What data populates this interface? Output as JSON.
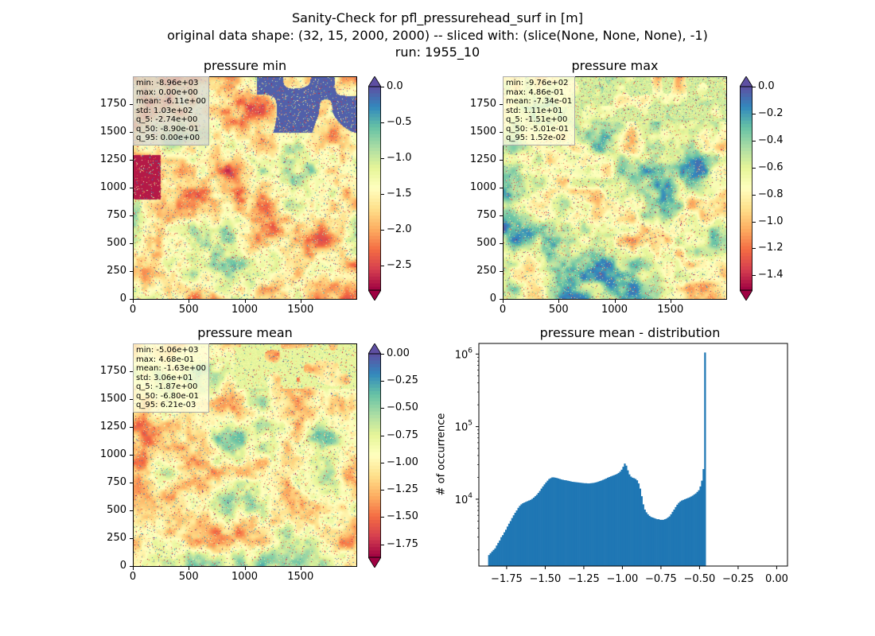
{
  "suptitle": {
    "line1": "Sanity-Check for pfl_pressurehead_surf in [m]",
    "line2": "original data shape: (32, 15, 2000, 2000) -- sliced with: (slice(None, None, None), -1)",
    "line3": "run: 1955_10"
  },
  "colors": {
    "histogram_bar": "#1f77b4",
    "spectral_low": "#9e0142",
    "spectral_mid": "#ffffbf",
    "spectral_high": "#5e4fa2"
  },
  "chart_data": [
    {
      "type": "heatmap",
      "title": "pressure min",
      "colormap": "Spectral",
      "xticks": [
        "0",
        "500",
        "1000",
        "1500"
      ],
      "yticks": [
        "0",
        "250",
        "500",
        "750",
        "1000",
        "1250",
        "1500",
        "1750"
      ],
      "xlim": [
        0,
        2000
      ],
      "ylim": [
        0,
        2000
      ],
      "colorbar": {
        "range": [
          -2.85,
          0.0
        ],
        "ticks": [
          "0.0",
          "−0.5",
          "−1.0",
          "−1.5",
          "−2.0",
          "−2.5"
        ],
        "tick_values": [
          0.0,
          -0.5,
          -1.0,
          -1.5,
          -2.0,
          -2.5
        ],
        "extend": "both"
      },
      "stats": [
        "min: -8.96e+03",
        "max: 0.00e+00",
        "mean: -6.11e+00",
        "std: 1.03e+02",
        "q_5: -2.74e+00",
        "q_50: -8.90e-01",
        "q_95: 0.00e+00"
      ]
    },
    {
      "type": "heatmap",
      "title": "pressure max",
      "colormap": "Spectral",
      "xticks": [
        "0",
        "500",
        "1000",
        "1500"
      ],
      "yticks": [
        "0",
        "250",
        "500",
        "750",
        "1000",
        "1250",
        "1500",
        "1750"
      ],
      "xlim": [
        0,
        2000
      ],
      "ylim": [
        0,
        2000
      ],
      "colorbar": {
        "range": [
          -1.51,
          0.0
        ],
        "ticks": [
          "0.0",
          "−0.2",
          "−0.4",
          "−0.6",
          "−0.8",
          "−1.0",
          "−1.2",
          "−1.4"
        ],
        "tick_values": [
          0.0,
          -0.2,
          -0.4,
          -0.6,
          -0.8,
          -1.0,
          -1.2,
          -1.4
        ],
        "extend": "both"
      },
      "stats": [
        "min: -9.76e+02",
        "max: 4.86e-01",
        "mean: -7.34e-01",
        "std: 1.11e+01",
        "q_5: -1.51e+00",
        "q_50: -5.01e-01",
        "q_95: 1.52e-02"
      ]
    },
    {
      "type": "heatmap",
      "title": "pressure mean",
      "colormap": "Spectral",
      "xticks": [
        "0",
        "500",
        "1000",
        "1500"
      ],
      "yticks": [
        "0",
        "250",
        "500",
        "750",
        "1000",
        "1250",
        "1500",
        "1750"
      ],
      "xlim": [
        0,
        2000
      ],
      "ylim": [
        0,
        2000
      ],
      "colorbar": {
        "range": [
          -1.87,
          0.0
        ],
        "ticks": [
          "0.00",
          "−0.25",
          "−0.50",
          "−0.75",
          "−1.00",
          "−1.25",
          "−1.50",
          "−1.75"
        ],
        "tick_values": [
          0.0,
          -0.25,
          -0.5,
          -0.75,
          -1.0,
          -1.25,
          -1.5,
          -1.75
        ],
        "extend": "both"
      },
      "stats": [
        "min: -5.06e+03",
        "max: 4.68e-01",
        "mean: -1.63e+00",
        "std: 3.06e+01",
        "q_5: -1.87e+00",
        "q_50: -6.80e-01",
        "q_95: 6.21e-03"
      ]
    },
    {
      "type": "bar",
      "title": "pressure mean - distribution",
      "ylabel": "# of occurrence",
      "yscale": "log",
      "xlim": [
        -1.93,
        0.07
      ],
      "ylim": [
        1200,
        1400000
      ],
      "xticks": [
        "−1.75",
        "−1.50",
        "−1.25",
        "−1.00",
        "−0.75",
        "−0.50",
        "−0.25",
        "0.00"
      ],
      "xtick_values": [
        -1.75,
        -1.5,
        -1.25,
        -1.0,
        -0.75,
        -0.5,
        -0.25,
        0.0
      ],
      "yticks": [
        {
          "base": "10",
          "exp": "4",
          "value": 10000
        },
        {
          "base": "10",
          "exp": "5",
          "value": 100000
        },
        {
          "base": "10",
          "exp": "6",
          "value": 1000000
        }
      ],
      "bin_start": -1.87,
      "bin_width": 0.01,
      "counts": [
        1700,
        1800,
        1900,
        2000,
        2100,
        2300,
        2500,
        2700,
        3000,
        3200,
        3500,
        3800,
        4200,
        4600,
        5000,
        5500,
        6000,
        6500,
        7000,
        7600,
        8100,
        8500,
        8800,
        9000,
        9200,
        9400,
        9600,
        9800,
        10100,
        10500,
        11000,
        11500,
        12200,
        13000,
        14000,
        15000,
        16000,
        17000,
        18000,
        19000,
        19500,
        20000,
        20000,
        19800,
        19600,
        19300,
        19000,
        18700,
        18500,
        18300,
        18200,
        18000,
        17800,
        17600,
        17400,
        17300,
        17200,
        17100,
        17000,
        16900,
        16800,
        16700,
        16600,
        16600,
        16500,
        16500,
        16600,
        16700,
        16800,
        17000,
        17200,
        17500,
        17800,
        18100,
        18500,
        18900,
        19300,
        19800,
        20200,
        20600,
        21000,
        21400,
        21800,
        22300,
        23000,
        24000,
        25500,
        28000,
        31000,
        29000,
        25000,
        22000,
        20500,
        19800,
        19500,
        19000,
        18200,
        16500,
        14000,
        11000,
        8500,
        7200,
        6600,
        6200,
        5900,
        5700,
        5600,
        5500,
        5400,
        5300,
        5300,
        5200,
        5200,
        5200,
        5300,
        5400,
        5600,
        5800,
        6200,
        6700,
        7200,
        7800,
        8400,
        8900,
        9300,
        9600,
        9800,
        10000,
        10200,
        10400,
        10600,
        10900,
        11200,
        11600,
        12000,
        12600,
        13300,
        15000,
        18000,
        26000,
        1050000
      ]
    }
  ]
}
